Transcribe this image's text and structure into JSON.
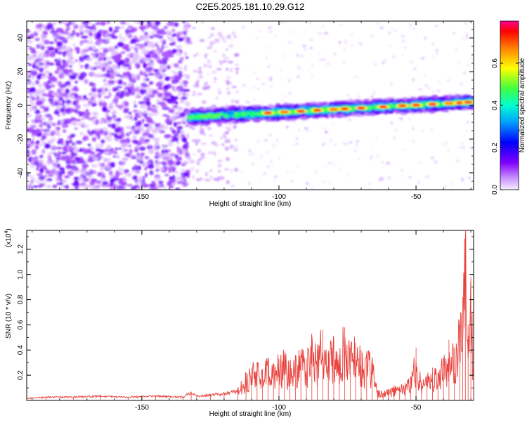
{
  "figure": {
    "title": "C2E5.2025.181.10.29.G12"
  },
  "chart_data": [
    {
      "type": "heatmap",
      "title": "C2E5.2025.181.10.29.G12",
      "xlabel": "Height of straight line (km)",
      "ylabel": "Frequency (Hz)",
      "xlim": [
        -192,
        -29
      ],
      "ylim": [
        -50,
        50
      ],
      "x_ticks": [
        -150,
        -100,
        -50
      ],
      "y_ticks": [
        -40,
        -20,
        0,
        20,
        40
      ],
      "colorbar": {
        "label": "Normalized spectral amplitude",
        "range": [
          0.0,
          0.8
        ],
        "ticks": [
          0.0,
          0.2,
          0.4,
          0.6
        ],
        "colormap": [
          "#f8f0ff",
          "#8000ff",
          "#0000ff",
          "#00c8ff",
          "#00ff80",
          "#ffff00",
          "#ff8000",
          "#ff0000",
          "#ff0080"
        ]
      },
      "regions": [
        {
          "name": "noise",
          "x_range": [
            -192,
            -133
          ],
          "freq_range": [
            -50,
            50
          ],
          "amplitude": 0.05
        },
        {
          "name": "sparse",
          "x_range": [
            -133,
            -115
          ],
          "freq_range": [
            -50,
            50
          ],
          "amplitude": 0.02
        },
        {
          "name": "signal-track",
          "x_range": [
            -133,
            -29
          ],
          "freq_start": -7,
          "freq_end": 2,
          "width_hz": 9,
          "peak_amplitude": 0.78
        }
      ]
    },
    {
      "type": "line",
      "xlabel": "Height of straight line (km)",
      "ylabel": "SNR (10 * v/v)",
      "y_multiplier": "(x10",
      "y_multiplier_exp": "4",
      "y_multiplier_close": ")",
      "xlim": [
        -192,
        -29
      ],
      "ylim": [
        0,
        1.35
      ],
      "x_ticks": [
        -150,
        -100,
        -50
      ],
      "y_ticks": [
        0.2,
        0.4,
        0.6,
        0.8,
        1.0,
        1.2
      ],
      "series": [
        {
          "color": "#e8413c",
          "x": [
            -192,
            -185,
            -175,
            -165,
            -155,
            -145,
            -135,
            -132,
            -130,
            -125,
            -120,
            -115,
            -112,
            -110,
            -108,
            -106,
            -104,
            -102,
            -100,
            -98,
            -96,
            -94,
            -92,
            -90,
            -88,
            -86,
            -84,
            -82,
            -80,
            -78,
            -76,
            -74,
            -72,
            -70,
            -68,
            -66,
            -64,
            -62,
            -60,
            -58,
            -56,
            -54,
            -52,
            -50,
            -48,
            -46,
            -44,
            -42,
            -40,
            -38,
            -36,
            -34,
            -33,
            -32,
            -31,
            -30,
            -29
          ],
          "y": [
            0.02,
            0.03,
            0.03,
            0.04,
            0.03,
            0.04,
            0.03,
            0.07,
            0.04,
            0.05,
            0.06,
            0.09,
            0.22,
            0.26,
            0.3,
            0.25,
            0.34,
            0.28,
            0.33,
            0.36,
            0.3,
            0.36,
            0.4,
            0.33,
            0.48,
            0.4,
            0.56,
            0.38,
            0.5,
            0.36,
            0.58,
            0.42,
            0.46,
            0.4,
            0.35,
            0.33,
            0.08,
            0.06,
            0.09,
            0.12,
            0.11,
            0.14,
            0.18,
            0.42,
            0.14,
            0.2,
            0.26,
            0.22,
            0.34,
            0.48,
            0.42,
            0.6,
            0.82,
            1.32,
            0.6,
            0.98,
            0.22
          ]
        }
      ]
    }
  ]
}
